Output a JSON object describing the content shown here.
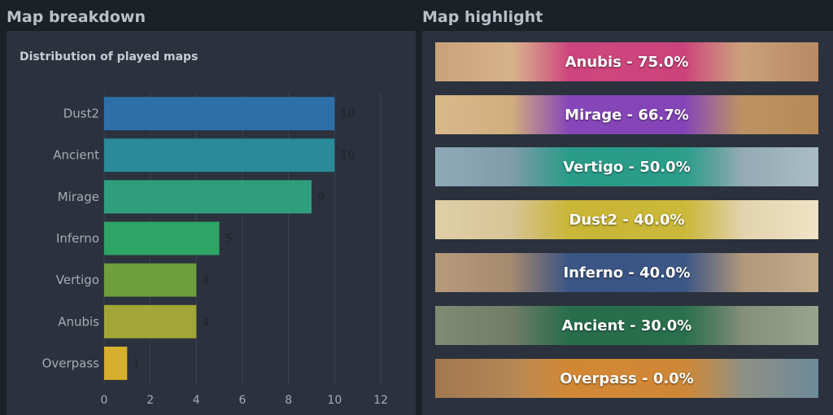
{
  "sections": {
    "left_title": "Map breakdown",
    "right_title": "Map highlight"
  },
  "chart_data": {
    "type": "bar",
    "orientation": "horizontal",
    "title": "Distribution of played maps",
    "categories": [
      "Dust2",
      "Ancient",
      "Mirage",
      "Inferno",
      "Vertigo",
      "Anubis",
      "Overpass"
    ],
    "values": [
      10,
      10,
      9,
      5,
      4,
      4,
      1
    ],
    "colors": [
      "#2e6faa",
      "#2a8a99",
      "#2f9e7d",
      "#2ea466",
      "#6f9e3c",
      "#a1a636",
      "#d6af2e"
    ],
    "xlim": [
      0,
      12
    ],
    "xticks": [
      0,
      2,
      4,
      6,
      8,
      10,
      12
    ],
    "grid": "vertical",
    "legend": "none"
  },
  "highlights": [
    {
      "map": "Anubis",
      "label": "Anubis - 75.0%",
      "overlay_color": "#c93277",
      "bg_colors": [
        "#c8a27a",
        "#e8c6a0",
        "#b98a64"
      ]
    },
    {
      "map": "Mirage",
      "label": "Mirage - 66.7%",
      "overlay_color": "#7b38c4",
      "bg_colors": [
        "#d8b98a",
        "#c79f6f",
        "#b88a5a"
      ]
    },
    {
      "map": "Vertigo",
      "label": "Vertigo - 50.0%",
      "overlay_color": "#1e9e86",
      "bg_colors": [
        "#8ea9b8",
        "#6f8c99",
        "#a9bcc4"
      ]
    },
    {
      "map": "Dust2",
      "label": "Dust2 - 40.0%",
      "overlay_color": "#c9b62a",
      "bg_colors": [
        "#e0cfa6",
        "#cdb784",
        "#efe3c5"
      ]
    },
    {
      "map": "Inferno",
      "label": "Inferno - 40.0%",
      "overlay_color": "#2d4f8a",
      "bg_colors": [
        "#b79a7c",
        "#8d7560",
        "#c5ab8c"
      ]
    },
    {
      "map": "Ancient",
      "label": "Ancient - 30.0%",
      "overlay_color": "#1f6e4a",
      "bg_colors": [
        "#7f8b74",
        "#5e6a55",
        "#9aa38d"
      ]
    },
    {
      "map": "Overpass",
      "label": "Overpass - 0.0%",
      "overlay_color": "#d4852e",
      "bg_colors": [
        "#a3774f",
        "#c99a5e",
        "#6d8a9a"
      ]
    }
  ]
}
